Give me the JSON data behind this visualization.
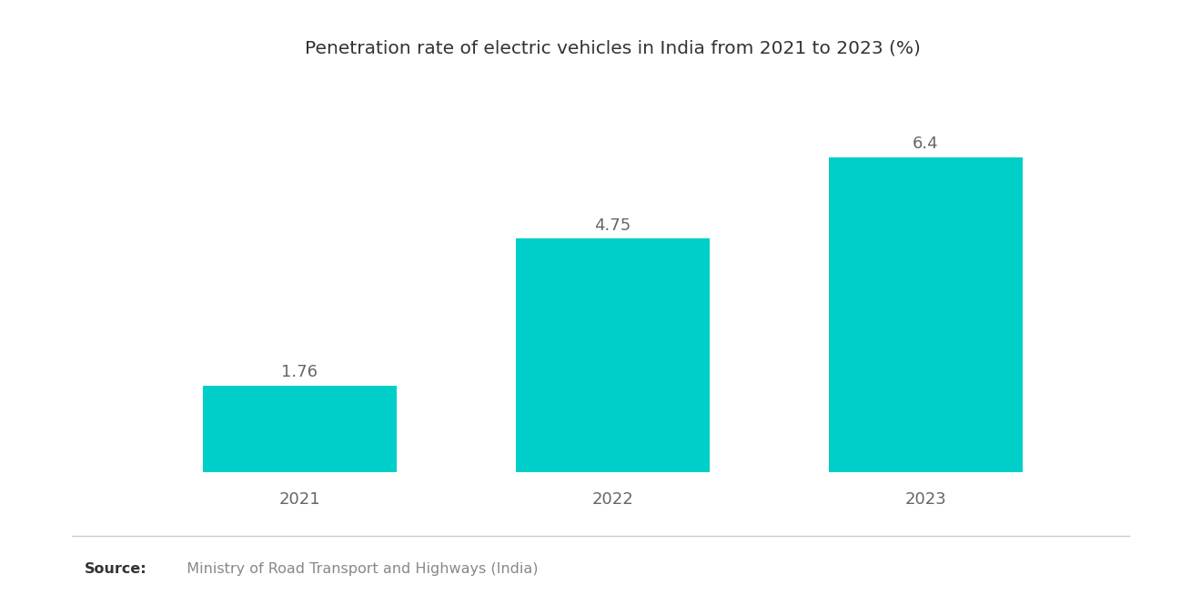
{
  "title": "Penetration rate of electric vehicles in India from 2021 to 2023 (%)",
  "categories": [
    "2021",
    "2022",
    "2023"
  ],
  "values": [
    1.76,
    4.75,
    6.4
  ],
  "bar_color": "#00CEC9",
  "background_color": "#ffffff",
  "title_fontsize": 14.5,
  "tick_fontsize": 13,
  "value_fontsize": 13,
  "ylim": [
    0,
    8
  ],
  "bar_width": 0.62
}
